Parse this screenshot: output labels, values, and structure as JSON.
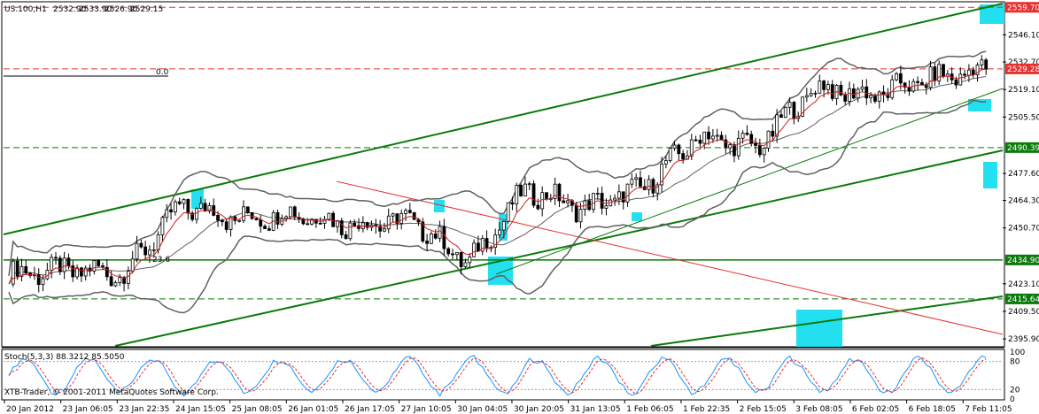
{
  "window": {
    "symbol_header": "US.100,H1",
    "ohlc": [
      "2532.90",
      "2533.90",
      "2526.90",
      "2529.15"
    ],
    "fib_label_top": "0.0",
    "fib_label_mid": "23.6"
  },
  "indicator": {
    "label": "Stoch(5,3,3) 88.3212 85.5050",
    "levels": [
      "100",
      "80",
      "20",
      "0"
    ],
    "copyright": "XTB-Trader, © 2001-2011 MetaQuotes Software Corp."
  },
  "price_scale": {
    "ticks": [
      "2546.10",
      "2532.70",
      "2519.10",
      "2505.50",
      "2477.60",
      "2464.30",
      "2450.70",
      "2423.10",
      "2409.50",
      "2395.90"
    ],
    "markers": [
      {
        "label": "2559.70",
        "color": "#e8302f"
      },
      {
        "label": "2529.28",
        "color": "#e8302f"
      },
      {
        "label": "2490.39",
        "color": "#0a7a0a"
      },
      {
        "label": "2434.90",
        "color": "#0a7a0a"
      },
      {
        "label": "2415.64",
        "color": "#0a7a0a"
      }
    ]
  },
  "time_axis": [
    "20 Jan 2012",
    "23 Jan 06:05",
    "23 Jan 22:35",
    "24 Jan 15:05",
    "25 Jan 08:05",
    "26 Jan 01:05",
    "26 Jan 17:05",
    "27 Jan 10:05",
    "30 Jan 04:05",
    "30 Jan 20:05",
    "31 Jan 13:05",
    "1 Feb 06:05",
    "1 Feb 22:35",
    "2 Feb 15:05",
    "3 Feb 08:05",
    "6 Feb 02:05",
    "6 Feb 18:05",
    "7 Feb 11:05"
  ],
  "colors": {
    "candle": "#000000",
    "band": "#606060",
    "ma": "#d02020",
    "channel": "#0a7a0a",
    "red_line": "#e8302f",
    "highlight": "#22e0f0",
    "stoch_main": "#1e90ff",
    "stoch_signal": "#e8302f"
  },
  "chart_data": {
    "type": "candlestick",
    "title": "US.100,H1",
    "timeframe": "H1",
    "y_range": [
      2392,
      2562
    ],
    "last_price": 2529.15,
    "ohlc_current": {
      "open": 2532.9,
      "high": 2533.9,
      "low": 2526.9,
      "close": 2529.15
    },
    "horizontal_levels": [
      2559.7,
      2529.28,
      2490.39,
      2434.9,
      2415.64
    ],
    "bollinger_bands": true,
    "moving_average": true,
    "closes_by_date": [
      {
        "x": "20 Jan 2012",
        "y": 2428
      },
      {
        "x": "23 Jan 06:05",
        "y": 2430
      },
      {
        "x": "23 Jan 22:35",
        "y": 2428
      },
      {
        "x": "24 Jan 15:05",
        "y": 2462
      },
      {
        "x": "25 Jan 08:05",
        "y": 2455
      },
      {
        "x": "26 Jan 01:05",
        "y": 2458
      },
      {
        "x": "26 Jan 17:05",
        "y": 2452
      },
      {
        "x": "27 Jan 10:05",
        "y": 2455
      },
      {
        "x": "30 Jan 04:05",
        "y": 2433
      },
      {
        "x": "30 Jan 20:05",
        "y": 2470
      },
      {
        "x": "31 Jan 13:05",
        "y": 2460
      },
      {
        "x": "1 Feb 06:05",
        "y": 2470
      },
      {
        "x": "1 Feb 22:35",
        "y": 2496
      },
      {
        "x": "2 Feb 15:05",
        "y": 2490
      },
      {
        "x": "3 Feb 08:05",
        "y": 2520
      },
      {
        "x": "6 Feb 02:05",
        "y": 2516
      },
      {
        "x": "6 Feb 18:05",
        "y": 2524
      },
      {
        "x": "7 Feb 11:05",
        "y": 2529
      }
    ],
    "stochastic": {
      "k": 88.3212,
      "d": 85.505,
      "params": [
        5,
        3,
        3
      ],
      "levels": [
        80,
        20
      ]
    }
  }
}
